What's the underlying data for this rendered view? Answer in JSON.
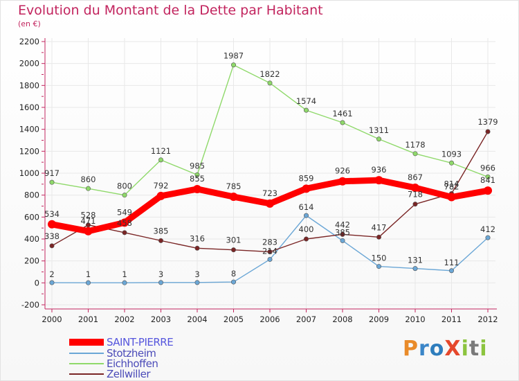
{
  "title": "Evolution du Montant de la Dette par Habitant",
  "subtitle": "(en €)",
  "logo_text": "ProXiti",
  "chart_data": {
    "type": "line",
    "title": "Evolution du Montant de la Dette par Habitant",
    "subtitle": "(en €)",
    "x": [
      "2000",
      "2001",
      "2002",
      "2003",
      "2004",
      "2005",
      "2006",
      "2007",
      "2008",
      "2009",
      "2010",
      "2011",
      "2012"
    ],
    "yticks": [
      "-200",
      "0",
      "200",
      "400",
      "600",
      "800",
      "1000",
      "1200",
      "1400",
      "1600",
      "1800",
      "2000",
      "2200"
    ],
    "ylim": [
      -200,
      2200
    ],
    "grid": true,
    "legend": "bottom-left",
    "series": [
      {
        "name": "SAINT-PIERRE",
        "color": "#ff0000",
        "values": [
          534,
          471,
          549,
          792,
          855,
          785,
          723,
          859,
          926,
          936,
          867,
          782,
          841
        ]
      },
      {
        "name": "Stotzheim",
        "color": "#6ba7d6",
        "values": [
          2,
          1,
          1,
          3,
          3,
          8,
          214,
          614,
          385,
          150,
          131,
          111,
          412
        ]
      },
      {
        "name": "Eichhoffen",
        "color": "#8fd96a",
        "values": [
          917,
          860,
          800,
          1121,
          985,
          1987,
          1822,
          1574,
          1461,
          1311,
          1178,
          1093,
          966
        ]
      },
      {
        "name": "Zellwiller",
        "color": "#7a2525",
        "values": [
          338,
          528,
          458,
          385,
          316,
          301,
          283,
          400,
          442,
          417,
          718,
          814,
          1379
        ]
      }
    ]
  }
}
